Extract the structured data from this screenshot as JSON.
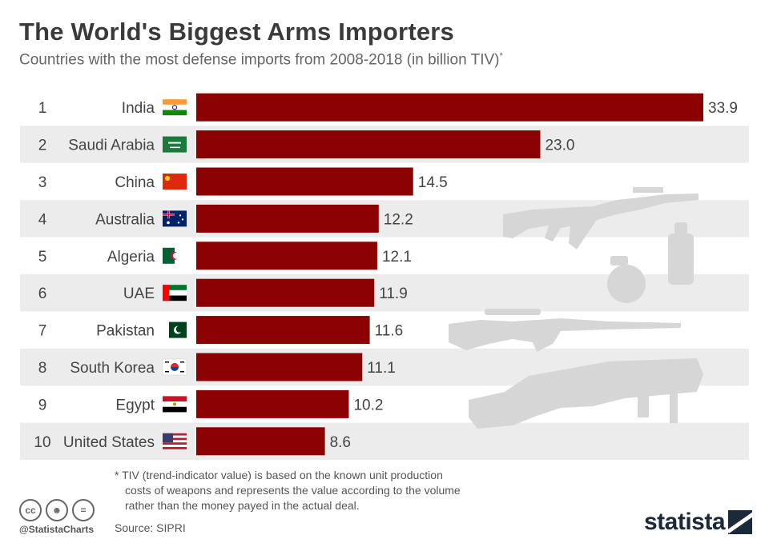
{
  "title": "The World's Biggest Arms Importers",
  "subtitle": "Countries with the most defense imports from 2008-2018 (in billion TIV)",
  "subtitle_mark": "*",
  "footnote": {
    "line1": "* TIV (trend-indicator value) is based on the known unit production",
    "line2": "costs of weapons and represents the value according to the volume",
    "line3": "rather than the money payed in the actual deal."
  },
  "source": "Source: SIPRI",
  "handle": "@StatistaCharts",
  "logo": "statista",
  "colors": {
    "bar": "#8B0000",
    "row_alt": "#ECECEC",
    "silhouette": "#D6D6D6"
  },
  "chart_data": {
    "type": "bar",
    "orientation": "horizontal",
    "ranks": [
      "1",
      "2",
      "3",
      "4",
      "5",
      "6",
      "7",
      "8",
      "9",
      "10"
    ],
    "categories": [
      "India",
      "Saudi Arabia",
      "China",
      "Australia",
      "Algeria",
      "UAE",
      "Pakistan",
      "South Korea",
      "Egypt",
      "United States"
    ],
    "values": [
      33.9,
      23.0,
      14.5,
      12.2,
      12.1,
      11.9,
      11.6,
      11.1,
      10.2,
      8.6
    ],
    "value_labels": [
      "33.9",
      "23.0",
      "14.5",
      "12.2",
      "12.1",
      "11.9",
      "11.6",
      "11.1",
      "10.2",
      "8.6"
    ],
    "flags": [
      "flag-india",
      "flag-saudi-arabia",
      "flag-china",
      "flag-australia",
      "flag-algeria",
      "flag-uae",
      "flag-pakistan",
      "flag-south-korea",
      "flag-egypt",
      "flag-united-states"
    ],
    "xlim": [
      0,
      33.9
    ],
    "grid": false,
    "legend": "none",
    "decorations": [
      "assault-rifle-icon",
      "grenade-icon",
      "grenade-icon",
      "sniper-rifle-icon",
      "rocket-launcher-icon"
    ]
  }
}
